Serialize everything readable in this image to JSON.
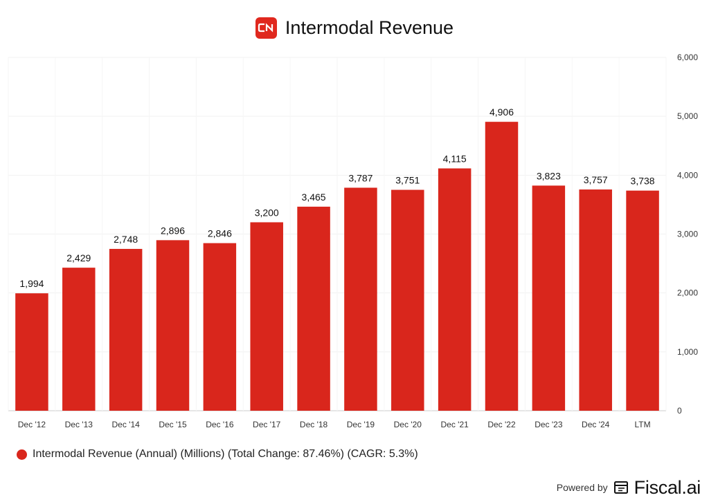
{
  "header": {
    "logo_text": "CN",
    "title": "Intermodal Revenue"
  },
  "colors": {
    "bar": "#d9261c",
    "logo": "#e0281e"
  },
  "legend": {
    "label": "Intermodal Revenue (Annual) (Millions) (Total Change: 87.46%) (CAGR: 5.3%)"
  },
  "footer": {
    "powered_by": "Powered by",
    "brand": "Fiscal.ai"
  },
  "chart_data": {
    "type": "bar",
    "title": "Intermodal Revenue",
    "categories": [
      "Dec '12",
      "Dec '13",
      "Dec '14",
      "Dec '15",
      "Dec '16",
      "Dec '17",
      "Dec '18",
      "Dec '19",
      "Dec '20",
      "Dec '21",
      "Dec '22",
      "Dec '23",
      "Dec '24",
      "LTM"
    ],
    "values": [
      1994,
      2429,
      2748,
      2896,
      2846,
      3200,
      3465,
      3787,
      3751,
      4115,
      4906,
      3823,
      3757,
      3738
    ],
    "value_labels": [
      "1,994",
      "2,429",
      "2,748",
      "2,896",
      "2,846",
      "3,200",
      "3,465",
      "3,787",
      "3,751",
      "4,115",
      "4,906",
      "3,823",
      "3,757",
      "3,738"
    ],
    "yticks": [
      0,
      1000,
      2000,
      3000,
      4000,
      5000,
      6000
    ],
    "ytick_labels": [
      "0",
      "1,000",
      "2,000",
      "3,000",
      "4,000",
      "5,000",
      "6,000"
    ],
    "ylim": [
      0,
      6000
    ],
    "y_axis_side": "right",
    "xlabel": "",
    "ylabel": "",
    "grid": true,
    "legend_position": "bottom-left",
    "series_name": "Intermodal Revenue (Annual) (Millions)"
  }
}
